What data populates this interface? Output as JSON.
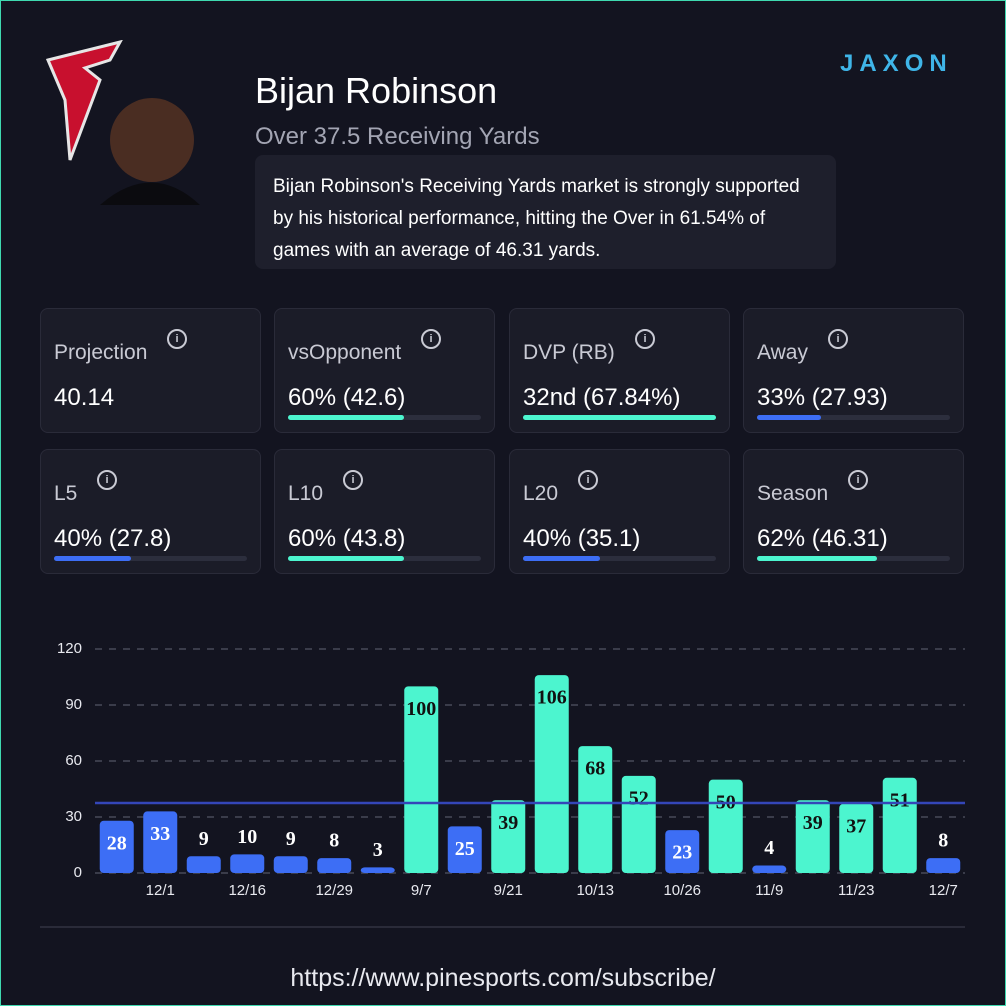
{
  "header": {
    "brand": "JAXON",
    "player": "Bijan Robinson",
    "market": "Over 37.5 Receiving Yards",
    "summary": "Bijan Robinson's Receiving Yards market is strongly supported by his historical performance, hitting the Over in 61.54% of games with an average of 46.31 yards."
  },
  "stats": [
    {
      "label": "Projection",
      "value": "40.14"
    },
    {
      "label": "vsOpponent",
      "value": "60% (42.6)",
      "bar": 60,
      "color": "#4cf5cf"
    },
    {
      "label": "DVP (RB)",
      "value": "32nd (67.84%)",
      "bar": 100,
      "color": "#4cf5cf"
    },
    {
      "label": "Away",
      "value": "33% (27.93)",
      "bar": 33,
      "color": "#3d6ef5"
    },
    {
      "label": "L5",
      "value": "40% (27.8)",
      "bar": 40,
      "color": "#3d6ef5"
    },
    {
      "label": "L10",
      "value": "60% (43.8)",
      "bar": 60,
      "color": "#4cf5cf"
    },
    {
      "label": "L20",
      "value": "40% (35.1)",
      "bar": 40,
      "color": "#3d6ef5"
    },
    {
      "label": "Season",
      "value": "62% (46.31)",
      "bar": 62,
      "color": "#4cf5cf"
    }
  ],
  "chart_data": {
    "type": "bar",
    "categories": [
      null,
      "12/1",
      null,
      "12/16",
      null,
      "12/29",
      null,
      "9/7",
      null,
      "9/21",
      null,
      "10/13",
      null,
      "10/26",
      null,
      "11/9",
      null,
      "11/23",
      null,
      "12/7"
    ],
    "values": [
      28,
      33,
      9,
      10,
      9,
      8,
      3,
      100,
      25,
      39,
      106,
      68,
      52,
      23,
      50,
      4,
      39,
      37,
      51,
      8
    ],
    "colors": [
      "#3d6ef5",
      "#3d6ef5",
      "#3d6ef5",
      "#3d6ef5",
      "#3d6ef5",
      "#3d6ef5",
      "#3d6ef5",
      "#4cf5cf",
      "#3d6ef5",
      "#4cf5cf",
      "#4cf5cf",
      "#4cf5cf",
      "#4cf5cf",
      "#3d6ef5",
      "#4cf5cf",
      "#3d6ef5",
      "#4cf5cf",
      "#4cf5cf",
      "#4cf5cf",
      "#3d6ef5"
    ],
    "threshold": 37.5,
    "threshold_color": "#3446b8",
    "ylim": [
      0,
      120
    ],
    "yticks": [
      0,
      30,
      60,
      90,
      120
    ],
    "grid": true
  },
  "footer": {
    "url": "https://www.pinesports.com/subscribe/"
  }
}
